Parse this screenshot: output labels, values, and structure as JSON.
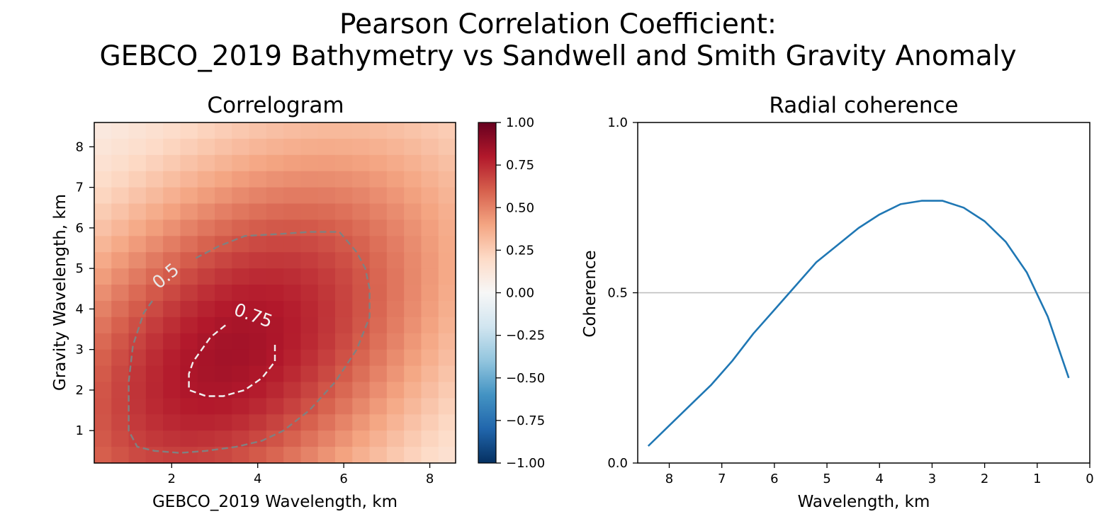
{
  "figure": {
    "title_line1": "Pearson Correlation Coefficient:",
    "title_line2": "GEBCO_2019 Bathymetry vs Sandwell and Smith Gravity Anomaly"
  },
  "colors": {
    "contour_outer": "#808080",
    "contour_inner": "#f0f0f0",
    "coherence_line": "#1f77b4",
    "reference_line": "#bbbbbb"
  },
  "chart_data": [
    {
      "type": "heatmap",
      "title": "Correlogram",
      "xlabel": "GEBCO_2019 Wavelength, km",
      "ylabel": "Gravity Wavelength, km",
      "xlim": [
        0.2,
        8.6
      ],
      "ylim": [
        0.2,
        8.6
      ],
      "xticks": [
        2,
        4,
        6,
        8
      ],
      "yticks": [
        1,
        2,
        3,
        4,
        5,
        6,
        7,
        8
      ],
      "grid_cells": 21,
      "peak": {
        "x": 3.4,
        "y": 2.9,
        "value": 0.84
      },
      "colorbar": {
        "colormap": "RdBu_r",
        "range": [
          -1.0,
          1.0
        ],
        "tick_labels": [
          "1.00",
          "0.75",
          "0.50",
          "0.25",
          "0.00",
          "−0.25",
          "−0.50",
          "−0.75",
          "−1.00"
        ]
      },
      "contours": [
        {
          "level": 0.5,
          "label": "0.5",
          "style": "dashed",
          "color": "#808080",
          "x": [
            1.55,
            1.35,
            1.1,
            1.0,
            1.0,
            1.2,
            1.6,
            2.2,
            2.8,
            3.5,
            4.1,
            4.6,
            5.2,
            5.8,
            6.3,
            6.6,
            6.6,
            6.5,
            6.3,
            5.9,
            5.2,
            4.5,
            3.7,
            3.1,
            2.55
          ],
          "y": [
            4.2,
            3.9,
            3.1,
            2.2,
            1.0,
            0.6,
            0.5,
            0.45,
            0.5,
            0.6,
            0.75,
            1.0,
            1.5,
            2.2,
            3.0,
            3.8,
            4.5,
            5.0,
            5.4,
            5.9,
            5.9,
            5.85,
            5.8,
            5.55,
            5.25
          ]
        },
        {
          "level": 0.75,
          "label": "0.75",
          "style": "dashed",
          "color": "#f0f0f0",
          "x": [
            3.25,
            2.9,
            2.5,
            2.4,
            2.4,
            2.8,
            3.2,
            3.7,
            4.1,
            4.4,
            4.4
          ],
          "y": [
            3.6,
            3.3,
            2.7,
            2.4,
            2.0,
            1.85,
            1.85,
            2.0,
            2.3,
            2.7,
            3.2
          ]
        }
      ]
    },
    {
      "type": "line",
      "title": "Radial coherence",
      "xlabel": "Wavelength, km",
      "ylabel": "Coherence",
      "xlim": [
        8.6,
        0
      ],
      "ylim": [
        0.0,
        1.0
      ],
      "xtick_labels": [
        "8",
        "7",
        "6",
        "5",
        "4",
        "3",
        "2",
        "1",
        "0"
      ],
      "ytick_labels": [
        "0.0",
        "0.5",
        "1.0"
      ],
      "reference_line": 0.5,
      "series": [
        {
          "x": [
            8.4,
            8.0,
            7.6,
            7.2,
            6.8,
            6.4,
            6.0,
            5.6,
            5.2,
            4.8,
            4.4,
            4.0,
            3.6,
            3.2,
            2.8,
            2.4,
            2.0,
            1.6,
            1.2,
            0.8,
            0.4
          ],
          "values": [
            0.05,
            0.11,
            0.17,
            0.23,
            0.3,
            0.38,
            0.45,
            0.52,
            0.59,
            0.64,
            0.69,
            0.73,
            0.76,
            0.77,
            0.77,
            0.75,
            0.71,
            0.65,
            0.56,
            0.43,
            0.25
          ]
        }
      ]
    }
  ]
}
